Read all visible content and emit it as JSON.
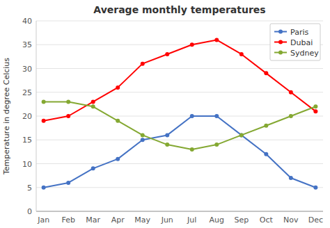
{
  "chart_data": {
    "type": "line",
    "title": "Average monthly temperatures",
    "ylabel": "Temperature in degree Celcius",
    "categories": [
      "Jan",
      "Feb",
      "Mar",
      "Apr",
      "May",
      "Jun",
      "Jul",
      "Aug",
      "Sep",
      "Oct",
      "Nov",
      "Dec"
    ],
    "series": [
      {
        "name": "Paris",
        "color": "#4472C4",
        "values": [
          5,
          6,
          9,
          11,
          15,
          16,
          20,
          20,
          16,
          12,
          7,
          5
        ]
      },
      {
        "name": "Dubai",
        "color": "#FF0000",
        "values": [
          19,
          20,
          23,
          26,
          31,
          33,
          35,
          36,
          33,
          29,
          25,
          21
        ]
      },
      {
        "name": "Sydney",
        "color": "#84A832",
        "values": [
          23,
          23,
          22,
          19,
          16,
          14,
          13,
          14,
          16,
          18,
          20,
          22
        ]
      }
    ],
    "ylim": [
      0,
      40
    ],
    "yticks": [
      0,
      5,
      10,
      15,
      20,
      25,
      30,
      35,
      40
    ],
    "grid": true,
    "legend": "upper right",
    "marker": "circle"
  }
}
